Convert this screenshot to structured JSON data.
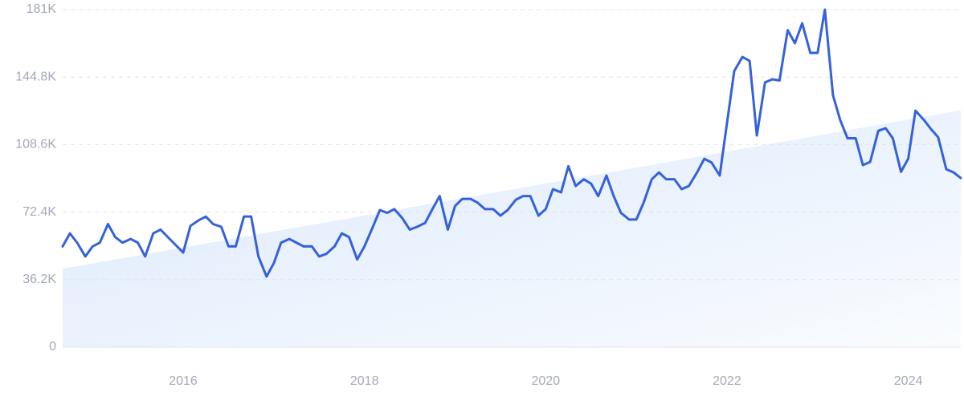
{
  "chart_data": {
    "type": "line",
    "x": [
      2014.67,
      2014.75,
      2014.83,
      2014.92,
      2015.0,
      2015.08,
      2015.17,
      2015.25,
      2015.33,
      2015.42,
      2015.5,
      2015.58,
      2015.67,
      2015.75,
      2015.83,
      2015.92,
      2016.0,
      2016.08,
      2016.17,
      2016.25,
      2016.33,
      2016.42,
      2016.5,
      2016.58,
      2016.67,
      2016.75,
      2016.83,
      2016.92,
      2017.0,
      2017.08,
      2017.17,
      2017.25,
      2017.33,
      2017.42,
      2017.5,
      2017.58,
      2017.67,
      2017.75,
      2017.83,
      2017.92,
      2018.0,
      2018.08,
      2018.17,
      2018.25,
      2018.33,
      2018.42,
      2018.5,
      2018.58,
      2018.67,
      2018.75,
      2018.83,
      2018.92,
      2019.0,
      2019.08,
      2019.17,
      2019.25,
      2019.33,
      2019.42,
      2019.5,
      2019.58,
      2019.67,
      2019.75,
      2019.83,
      2019.92,
      2020.0,
      2020.08,
      2020.17,
      2020.25,
      2020.33,
      2020.42,
      2020.5,
      2020.58,
      2020.67,
      2020.75,
      2020.83,
      2020.92,
      2021.0,
      2021.08,
      2021.17,
      2021.25,
      2021.33,
      2021.42,
      2021.5,
      2021.58,
      2021.67,
      2021.75,
      2021.83,
      2021.92,
      2022.0,
      2022.08,
      2022.17,
      2022.25,
      2022.33,
      2022.42,
      2022.5,
      2022.58,
      2022.67,
      2022.75,
      2022.83,
      2022.92,
      2023.0,
      2023.08,
      2023.17,
      2023.25,
      2023.33,
      2023.42,
      2023.5,
      2023.58,
      2023.67,
      2023.75,
      2023.83,
      2023.92,
      2024.0,
      2024.08,
      2024.17,
      2024.25,
      2024.33,
      2024.42,
      2024.5,
      2024.58
    ],
    "series": [
      {
        "color": "#3561db",
        "values": [
          54000,
          61000,
          56000,
          48600,
          54000,
          56000,
          66000,
          59000,
          56000,
          58000,
          56000,
          48600,
          61000,
          63000,
          59000,
          54600,
          50700,
          65000,
          68000,
          70000,
          66000,
          64500,
          54000,
          54000,
          70000,
          70000,
          48600,
          37800,
          45000,
          56000,
          58000,
          56000,
          54000,
          54000,
          48600,
          50000,
          54000,
          61000,
          59000,
          47000,
          54000,
          63000,
          73500,
          72000,
          74000,
          69000,
          63000,
          64500,
          66600,
          74000,
          81000,
          63000,
          75700,
          79500,
          79500,
          77400,
          74000,
          74000,
          70500,
          73500,
          79000,
          81000,
          81000,
          70500,
          74000,
          84700,
          83000,
          97000,
          86400,
          90000,
          87700,
          81000,
          92000,
          81000,
          72000,
          68400,
          68400,
          77400,
          90000,
          93700,
          90000,
          90000,
          84700,
          86400,
          93700,
          101000,
          99000,
          92000,
          120000,
          148000,
          155600,
          153500,
          113500,
          142000,
          143600,
          143000,
          170000,
          163000,
          173700,
          157800,
          157800,
          181000,
          135000,
          121700,
          112000,
          112000,
          97600,
          99300,
          116000,
          117400,
          112000,
          94000,
          101000,
          126800,
          122000,
          117000,
          112600,
          95400,
          93700,
          90700
        ]
      }
    ],
    "trend": {
      "color": "#dbe9fb",
      "x": [
        2014.67,
        2024.58
      ],
      "values": [
        42000,
        127000
      ]
    },
    "xlim": [
      2014.67,
      2024.58
    ],
    "xticks": [
      2016,
      2018,
      2020,
      2022,
      2024
    ],
    "ylim": [
      0,
      181000
    ],
    "yticks": [
      0,
      {
        "value": 36200,
        "label": "36.2K"
      },
      {
        "value": 72400,
        "label": "72.4K"
      },
      {
        "value": 108600,
        "label": "108.6K"
      },
      {
        "value": 144800,
        "label": "144.8K"
      },
      {
        "value": 181000,
        "label": "181K"
      }
    ],
    "grid": true
  }
}
